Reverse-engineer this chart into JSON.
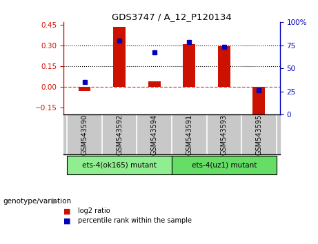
{
  "title": "GDS3747 / A_12_P120134",
  "samples": [
    "GSM543590",
    "GSM543592",
    "GSM543594",
    "GSM543591",
    "GSM543593",
    "GSM543595"
  ],
  "log2_ratio": [
    -0.03,
    0.435,
    0.04,
    0.31,
    0.295,
    -0.2
  ],
  "percentile_rank": [
    35,
    80,
    67,
    78,
    73,
    26
  ],
  "groups": [
    {
      "label": "ets-4(ok165) mutant",
      "indices": [
        0,
        1,
        2
      ],
      "color": "#90EE90"
    },
    {
      "label": "ets-4(uz1) mutant",
      "indices": [
        3,
        4,
        5
      ],
      "color": "#66DD66"
    }
  ],
  "bar_color": "#CC1100",
  "dot_color": "#0000BB",
  "ylim_left": [
    -0.2,
    0.47
  ],
  "ylim_right": [
    0,
    100
  ],
  "yticks_left": [
    -0.15,
    0,
    0.15,
    0.3,
    0.45
  ],
  "yticks_right": [
    0,
    25,
    50,
    75,
    100
  ],
  "hlines": [
    0.15,
    0.3
  ],
  "bar_width": 0.35,
  "label_bg": "#C8C8C8",
  "legend_items": [
    {
      "label": "log2 ratio",
      "color": "#CC1100"
    },
    {
      "label": "percentile rank within the sample",
      "color": "#0000BB"
    }
  ],
  "genotype_label": "genotype/variation"
}
